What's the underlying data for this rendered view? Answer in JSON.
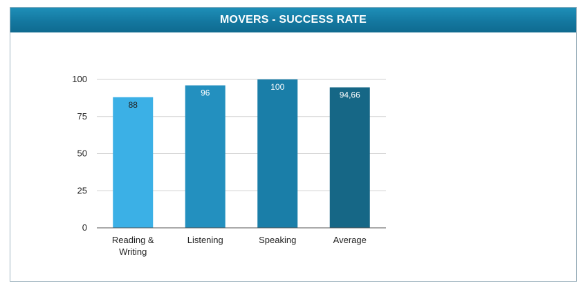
{
  "header": {
    "title": "MOVERS - SUCCESS RATE"
  },
  "chart_data": {
    "type": "bar",
    "title": "MOVERS - SUCCESS RATE",
    "categories": [
      [
        "Reading &",
        "Writing"
      ],
      [
        "Listening"
      ],
      [
        "Speaking"
      ],
      [
        "Average"
      ]
    ],
    "values": [
      88,
      96,
      100,
      94.66
    ],
    "value_labels": [
      "88",
      "96",
      "100",
      "94,66"
    ],
    "bar_colors": [
      "#3bb0e6",
      "#2390bf",
      "#1a7ea8",
      "#166786"
    ],
    "label_colors": [
      "#222222",
      "#ffffff",
      "#ffffff",
      "#ffffff"
    ],
    "yticks": [
      "0",
      "25",
      "50",
      "75",
      "100"
    ],
    "ylim": [
      0,
      100
    ],
    "grid": true,
    "grid_color": "#d0d0d0",
    "xlabel": "",
    "ylabel": ""
  }
}
